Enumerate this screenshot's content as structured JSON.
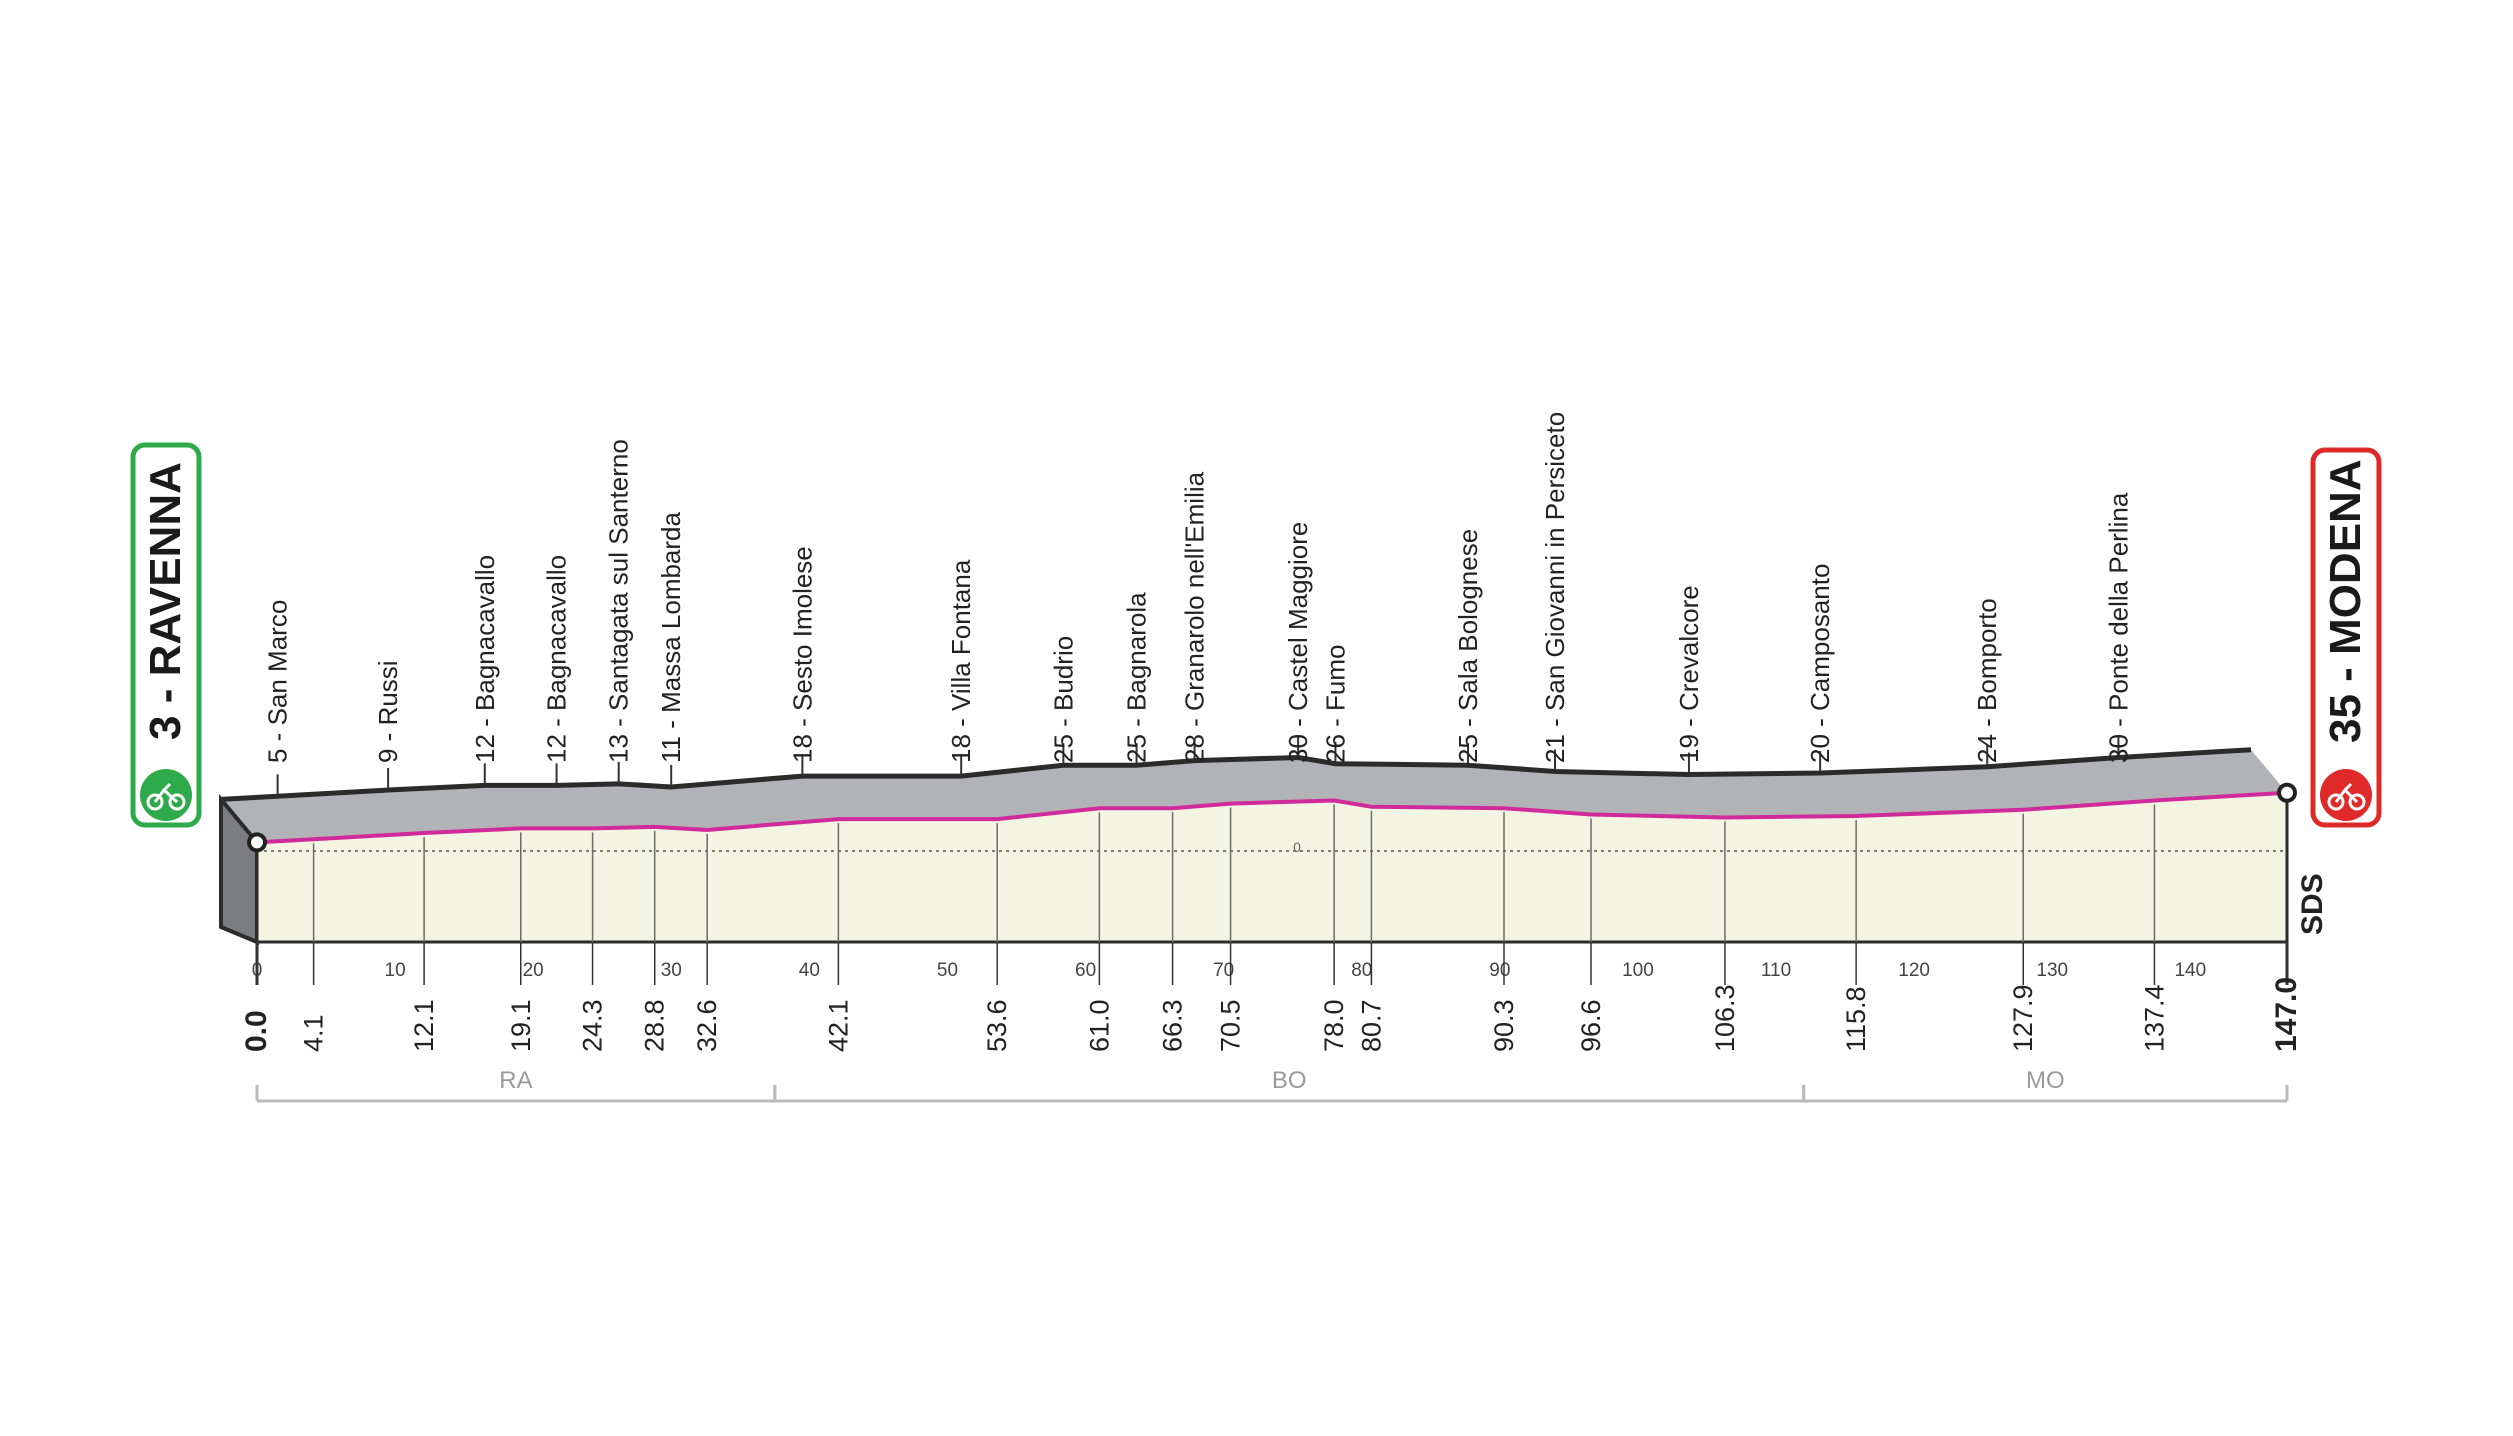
{
  "chart_data": {
    "type": "area",
    "xlim": [
      0,
      147.0
    ],
    "start": {
      "name": "RAVENNA",
      "altitude": "3",
      "label": "3 - RAVENNA",
      "color": "#2eaa4a"
    },
    "finish": {
      "name": "MODENA",
      "altitude": "35",
      "label": "35 - MODENA",
      "color": "#e02a2a"
    },
    "zero_label": "0",
    "brand": "SDS",
    "x_ticks": [
      "0",
      "10",
      "20",
      "30",
      "40",
      "50",
      "60",
      "70",
      "80",
      "90",
      "100",
      "110",
      "120",
      "130",
      "140"
    ],
    "x_tick_values": [
      0,
      10,
      20,
      30,
      40,
      50,
      60,
      70,
      80,
      90,
      100,
      110,
      120,
      130,
      140
    ],
    "waypoints": [
      {
        "km": 0.0,
        "km_label": "0.0",
        "altitude": 3,
        "name": ""
      },
      {
        "km": 4.1,
        "km_label": "4.1",
        "altitude": 5,
        "name": "5 - San Marco"
      },
      {
        "km": 12.1,
        "km_label": "12.1",
        "altitude": 9,
        "name": "9 - Russi"
      },
      {
        "km": 19.1,
        "km_label": "19.1",
        "altitude": 12,
        "name": "12 - Bagnacavallo"
      },
      {
        "km": 24.3,
        "km_label": "24.3",
        "altitude": 12,
        "name": "12 - Bagnacavallo"
      },
      {
        "km": 28.8,
        "km_label": "28.8",
        "altitude": 13,
        "name": "13 - Santagata sul Santerno"
      },
      {
        "km": 32.6,
        "km_label": "32.6",
        "altitude": 11,
        "name": "11 - Massa Lombarda"
      },
      {
        "km": 42.1,
        "km_label": "42.1",
        "altitude": 18,
        "name": "18 - Sesto Imolese"
      },
      {
        "km": 53.6,
        "km_label": "53.6",
        "altitude": 18,
        "name": "18 - Villa Fontana"
      },
      {
        "km": 61.0,
        "km_label": "61.0",
        "altitude": 25,
        "name": "25 - Budrio"
      },
      {
        "km": 66.3,
        "km_label": "66.3",
        "altitude": 25,
        "name": "25 - Bagnarola"
      },
      {
        "km": 70.5,
        "km_label": "70.5",
        "altitude": 28,
        "name": "28 - Granarolo nell'Emilia"
      },
      {
        "km": 78.0,
        "km_label": "78.0",
        "altitude": 30,
        "name": "30 - Castel Maggiore"
      },
      {
        "km": 80.7,
        "km_label": "80.7",
        "altitude": 26,
        "name": "26 - Fumo"
      },
      {
        "km": 90.3,
        "km_label": "90.3",
        "altitude": 25,
        "name": "25 - Sala Bolognese"
      },
      {
        "km": 96.6,
        "km_label": "96.6",
        "altitude": 21,
        "name": "21 - San Giovanni in Persiceto"
      },
      {
        "km": 106.3,
        "km_label": "106.3",
        "altitude": 19,
        "name": "19 - Crevalcore"
      },
      {
        "km": 115.8,
        "km_label": "115.8",
        "altitude": 20,
        "name": "20 - Camposanto"
      },
      {
        "km": 127.9,
        "km_label": "127.9",
        "altitude": 24,
        "name": "24 - Bomporto"
      },
      {
        "km": 137.4,
        "km_label": "137.4",
        "altitude": 30,
        "name": "30 - Ponte della Perlina"
      },
      {
        "km": 147.0,
        "km_label": "147.0",
        "altitude": 35,
        "name": ""
      }
    ],
    "provinces": [
      {
        "label": "RA",
        "from_km": 0,
        "to_km": 37.5
      },
      {
        "label": "BO",
        "from_km": 37.5,
        "to_km": 112.0
      },
      {
        "label": "MO",
        "from_km": 112.0,
        "to_km": 147.0
      }
    ],
    "colors": {
      "area_fill": "#f3f5e2",
      "top_face": "#b1b3b6",
      "outline": "#2b2b2b",
      "route_line": "#d12b9b",
      "gridline": "#555555"
    }
  }
}
